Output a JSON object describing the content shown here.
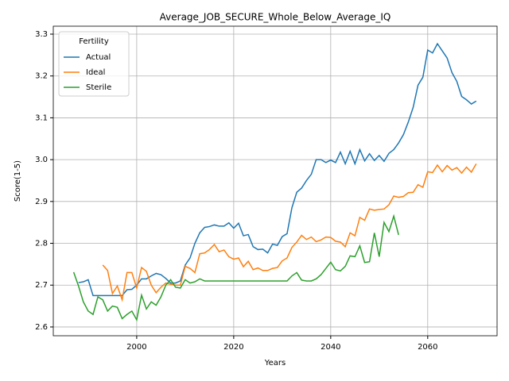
{
  "chart_data": {
    "type": "line",
    "title": "Average_JOB_SECURE_Whole_Below_Average_IQ",
    "x_label": "Years",
    "y_label": "Score(1-5)",
    "legend_title": "Fertility",
    "legend_position": "upper left",
    "grid": true,
    "x": [
      1987,
      1988,
      1989,
      1990,
      1991,
      1992,
      1993,
      1994,
      1995,
      1996,
      1997,
      1998,
      1999,
      2000,
      2001,
      2002,
      2003,
      2004,
      2005,
      2006,
      2007,
      2008,
      2009,
      2010,
      2011,
      2012,
      2013,
      2014,
      2015,
      2016,
      2017,
      2018,
      2019,
      2020,
      2021,
      2022,
      2023,
      2024,
      2025,
      2026,
      2027,
      2028,
      2029,
      2030,
      2031,
      2032,
      2033,
      2034,
      2035,
      2036,
      2037,
      2038,
      2039,
      2040,
      2041,
      2042,
      2043,
      2044,
      2045,
      2046,
      2047,
      2048,
      2049,
      2050,
      2051,
      2052,
      2053,
      2054,
      2055,
      2056,
      2057,
      2058,
      2059,
      2060,
      2061,
      2062,
      2063,
      2064,
      2065,
      2066,
      2067,
      2068,
      2069,
      2070
    ],
    "series": [
      {
        "name": "Actual",
        "color": "#1f77b4",
        "values": [
          null,
          2.706,
          2.708,
          2.713,
          2.675,
          2.675,
          2.675,
          2.675,
          2.675,
          2.675,
          2.675,
          2.689,
          2.69,
          2.7,
          2.715,
          2.715,
          2.722,
          2.728,
          2.725,
          2.716,
          2.705,
          2.705,
          2.71,
          2.748,
          2.765,
          2.8,
          2.825,
          2.838,
          2.84,
          2.844,
          2.841,
          2.841,
          2.849,
          2.836,
          2.848,
          2.818,
          2.821,
          2.792,
          2.785,
          2.786,
          2.777,
          2.798,
          2.795,
          2.816,
          2.823,
          2.885,
          2.922,
          2.932,
          2.95,
          2.965,
          3.0,
          3.0,
          2.993,
          2.999,
          2.993,
          3.018,
          2.99,
          3.02,
          2.99,
          3.024,
          2.997,
          3.014,
          2.998,
          3.01,
          2.996,
          3.015,
          3.024,
          3.04,
          3.06,
          3.09,
          3.125,
          3.178,
          3.197,
          3.262,
          3.255,
          3.277,
          3.26,
          3.243,
          3.208,
          3.187,
          3.151,
          3.143,
          3.133,
          3.14
        ]
      },
      {
        "name": "Ideal",
        "color": "#ff7f0e",
        "values": [
          null,
          null,
          null,
          null,
          null,
          null,
          2.748,
          2.735,
          2.68,
          2.698,
          2.665,
          2.73,
          2.73,
          2.693,
          2.742,
          2.733,
          2.7,
          2.682,
          2.695,
          2.705,
          2.702,
          2.7,
          2.7,
          2.745,
          2.74,
          2.73,
          2.775,
          2.777,
          2.785,
          2.797,
          2.78,
          2.784,
          2.768,
          2.762,
          2.765,
          2.744,
          2.757,
          2.737,
          2.741,
          2.735,
          2.735,
          2.74,
          2.742,
          2.758,
          2.765,
          2.79,
          2.803,
          2.819,
          2.809,
          2.815,
          2.804,
          2.808,
          2.815,
          2.814,
          2.805,
          2.803,
          2.792,
          2.825,
          2.818,
          2.862,
          2.855,
          2.882,
          2.879,
          2.881,
          2.882,
          2.892,
          2.913,
          2.91,
          2.912,
          2.921,
          2.922,
          2.94,
          2.934,
          2.971,
          2.969,
          2.987,
          2.971,
          2.986,
          2.975,
          2.981,
          2.968,
          2.982,
          2.97,
          2.99
        ]
      },
      {
        "name": "Sterile",
        "color": "#2ca02c",
        "values": [
          2.731,
          2.698,
          2.66,
          2.638,
          2.63,
          2.672,
          2.665,
          2.638,
          2.65,
          2.647,
          2.62,
          2.63,
          2.638,
          2.617,
          2.676,
          2.643,
          2.66,
          2.652,
          2.672,
          2.7,
          2.713,
          2.695,
          2.693,
          2.713,
          2.705,
          2.708,
          2.715,
          2.71,
          2.71,
          2.71,
          2.71,
          2.71,
          2.71,
          2.71,
          2.71,
          2.71,
          2.71,
          2.71,
          2.71,
          2.71,
          2.71,
          2.71,
          2.71,
          2.71,
          2.71,
          2.722,
          2.73,
          2.712,
          2.71,
          2.71,
          2.715,
          2.725,
          2.74,
          2.755,
          2.737,
          2.734,
          2.745,
          2.77,
          2.768,
          2.794,
          2.754,
          2.756,
          2.825,
          2.768,
          2.85,
          2.828,
          2.865,
          2.82,
          null,
          null,
          null,
          null,
          null,
          null,
          null,
          null,
          null,
          null,
          null,
          null,
          null,
          null,
          null,
          null
        ]
      }
    ],
    "xlim": [
      1982.8,
      2074.3
    ],
    "xticks": [
      2000,
      2020,
      2040,
      2060
    ],
    "ylim": [
      2.579,
      3.319
    ],
    "yticks": [
      2.6,
      2.7,
      2.8,
      2.9,
      {
        "value": 3,
        "label": "3.0"
      },
      3.1,
      3.2,
      3.3
    ]
  }
}
